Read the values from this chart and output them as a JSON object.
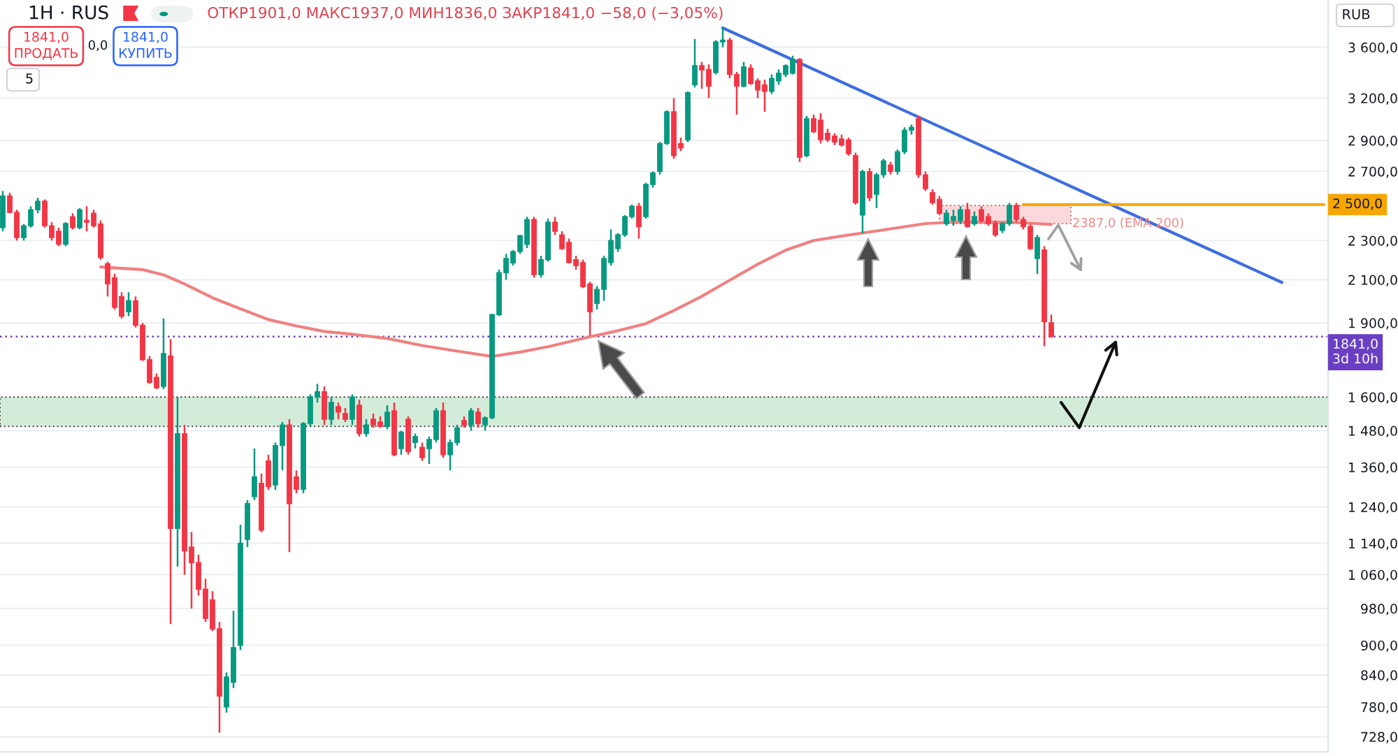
{
  "chart_data": {
    "type": "candlestick",
    "title": "1H · RUS",
    "subtitle": "ОТКР1901,0 МАКС1937,0 МИН1836,0 ЗАКР1841,0 −58,0 (−3,05%)",
    "categories": [
      null,
      null,
      null,
      null,
      null,
      null,
      null,
      null,
      null,
      null,
      null,
      null,
      null,
      null,
      null,
      null,
      null,
      null,
      null,
      null,
      null,
      null,
      null,
      null,
      null,
      null,
      null,
      null,
      null,
      null,
      null,
      null,
      null,
      null,
      null,
      null,
      null,
      null,
      null,
      null,
      null,
      null,
      null,
      null,
      null,
      null,
      null,
      null,
      null,
      null,
      null,
      null,
      null,
      null,
      null,
      null,
      null,
      null,
      null,
      null,
      null,
      null,
      null,
      null,
      null,
      null,
      null,
      null,
      null,
      null,
      null,
      null,
      null,
      null,
      null,
      null,
      null,
      null,
      null,
      null,
      null,
      null,
      null,
      null,
      null,
      null,
      null,
      null,
      null,
      null,
      null,
      null,
      null,
      null,
      null,
      null,
      null,
      null,
      null,
      null,
      null,
      null,
      null,
      null,
      null,
      null,
      null,
      null,
      null,
      null,
      null,
      null,
      null,
      null,
      null,
      null,
      null,
      null,
      null,
      null,
      null,
      null,
      null,
      null,
      null,
      null,
      null,
      null,
      null,
      null,
      null,
      null,
      null,
      null,
      null,
      null,
      null,
      null,
      null,
      null,
      null,
      null,
      null,
      null,
      null,
      null,
      null,
      null,
      null,
      null,
      null,
      null,
      null,
      null,
      null,
      null,
      null,
      null,
      null,
      null,
      null,
      null,
      null,
      null,
      null,
      null,
      null,
      null,
      null,
      null,
      null,
      null,
      null,
      null,
      null,
      null,
      null,
      null,
      null,
      null,
      null,
      null,
      null,
      null,
      null,
      null,
      null,
      null,
      null,
      null
    ],
    "ohlc": [
      [
        2370,
        2580,
        2350,
        2550
      ],
      [
        2550,
        2570,
        2450,
        2455
      ],
      [
        2455,
        2470,
        2300,
        2316
      ],
      [
        2316,
        2390,
        2300,
        2380
      ],
      [
        2380,
        2490,
        2370,
        2470
      ],
      [
        2470,
        2540,
        2450,
        2520
      ],
      [
        2520,
        2530,
        2370,
        2380
      ],
      [
        2380,
        2400,
        2300,
        2316
      ],
      [
        2350,
        2370,
        2270,
        2280
      ],
      [
        2280,
        2400,
        2270,
        2392
      ],
      [
        2430,
        2450,
        2360,
        2370
      ],
      [
        2370,
        2480,
        2360,
        2470
      ],
      [
        2410,
        2490,
        2350,
        2400
      ],
      [
        2450,
        2470,
        2370,
        2380
      ],
      [
        2390,
        2410,
        2200,
        2210
      ],
      [
        2180,
        2190,
        2020,
        2080
      ],
      [
        2110,
        2130,
        1960,
        1970
      ],
      [
        2020,
        2040,
        1920,
        1930
      ],
      [
        1950,
        2040,
        1930,
        2000
      ],
      [
        2000,
        2020,
        1880,
        1890
      ],
      [
        1890,
        1900,
        1740,
        1745
      ],
      [
        1745,
        1760,
        1650,
        1655
      ],
      [
        1675,
        1690,
        1630,
        1635
      ],
      [
        1640,
        1920,
        1630,
        1770
      ],
      [
        1760,
        1830,
        945,
        1180
      ],
      [
        1180,
        1600,
        1080,
        1470
      ],
      [
        1470,
        1500,
        1060,
        1120
      ],
      [
        1130,
        1170,
        980,
        1090
      ],
      [
        1090,
        1110,
        1010,
        1025
      ],
      [
        1025,
        1050,
        950,
        958
      ],
      [
        1000,
        1020,
        930,
        935
      ],
      [
        935,
        950,
        735,
        800
      ],
      [
        780,
        845,
        770,
        836
      ],
      [
        826,
        975,
        815,
        895
      ],
      [
        900,
        1190,
        890,
        1140
      ],
      [
        1150,
        1260,
        1130,
        1250
      ],
      [
        1270,
        1420,
        1260,
        1330
      ],
      [
        1310,
        1340,
        1170,
        1175
      ],
      [
        1380,
        1400,
        1290,
        1300
      ],
      [
        1305,
        1440,
        1290,
        1430
      ],
      [
        1430,
        1510,
        1350,
        1500
      ],
      [
        1500,
        1520,
        1117,
        1250
      ],
      [
        1330,
        1350,
        1280,
        1292
      ],
      [
        1292,
        1510,
        1280,
        1505
      ],
      [
        1505,
        1610,
        1495,
        1600
      ],
      [
        1600,
        1650,
        1580,
        1620
      ],
      [
        1620,
        1640,
        1500,
        1520
      ],
      [
        1520,
        1600,
        1500,
        1580
      ],
      [
        1565,
        1580,
        1520,
        1545
      ],
      [
        1540,
        1560,
        1510,
        1520
      ],
      [
        1520,
        1610,
        1500,
        1600
      ],
      [
        1570,
        1590,
        1460,
        1470
      ],
      [
        1470,
        1520,
        1460,
        1500
      ],
      [
        1520,
        1540,
        1490,
        1500
      ],
      [
        1510,
        1530,
        1490,
        1495
      ],
      [
        1495,
        1570,
        1485,
        1545
      ],
      [
        1550,
        1580,
        1395,
        1400
      ],
      [
        1420,
        1480,
        1400,
        1475
      ],
      [
        1520,
        1530,
        1400,
        1410
      ],
      [
        1440,
        1470,
        1420,
        1460
      ],
      [
        1424,
        1440,
        1380,
        1390
      ],
      [
        1420,
        1460,
        1370,
        1450
      ],
      [
        1450,
        1560,
        1440,
        1550
      ],
      [
        1550,
        1580,
        1390,
        1400
      ],
      [
        1400,
        1450,
        1350,
        1440
      ],
      [
        1440,
        1500,
        1430,
        1490
      ],
      [
        1515,
        1530,
        1490,
        1500
      ],
      [
        1500,
        1560,
        1480,
        1550
      ],
      [
        1545,
        1560,
        1490,
        1505
      ],
      [
        1500,
        1530,
        1480,
        1525
      ],
      [
        1525,
        1940,
        1520,
        1937
      ],
      [
        1937,
        2150,
        1930,
        2135
      ],
      [
        2135,
        2230,
        2100,
        2206
      ],
      [
        2184,
        2250,
        2170,
        2242
      ],
      [
        2242,
        2330,
        2230,
        2326
      ],
      [
        2279,
        2430,
        2260,
        2415
      ],
      [
        2415,
        2430,
        2110,
        2125
      ],
      [
        2125,
        2220,
        2110,
        2200
      ],
      [
        2200,
        2420,
        2190,
        2400
      ],
      [
        2400,
        2430,
        2330,
        2350
      ],
      [
        2330,
        2350,
        2250,
        2257
      ],
      [
        2290,
        2310,
        2180,
        2185
      ],
      [
        2200,
        2220,
        2150,
        2170
      ],
      [
        2185,
        2200,
        2060,
        2067
      ],
      [
        2080,
        2090,
        1845,
        1950
      ],
      [
        1988,
        2070,
        1960,
        2054
      ],
      [
        2054,
        2220,
        2000,
        2206
      ],
      [
        2185,
        2360,
        2170,
        2300
      ],
      [
        2257,
        2340,
        2240,
        2331
      ],
      [
        2331,
        2440,
        2320,
        2431
      ],
      [
        2431,
        2500,
        2420,
        2490
      ],
      [
        2490,
        2510,
        2310,
        2376
      ],
      [
        2431,
        2630,
        2420,
        2619
      ],
      [
        2619,
        2700,
        2600,
        2690
      ],
      [
        2700,
        2890,
        2680,
        2880
      ],
      [
        2880,
        3110,
        2870,
        3100
      ],
      [
        3100,
        3200,
        2780,
        2800
      ],
      [
        2880,
        2920,
        2830,
        2850
      ],
      [
        2905,
        3250,
        2890,
        3240
      ],
      [
        3300,
        3670,
        3280,
        3450
      ],
      [
        3450,
        3480,
        3270,
        3416
      ],
      [
        3420,
        3460,
        3200,
        3290
      ],
      [
        3395,
        3660,
        3380,
        3645
      ],
      [
        3645,
        3765,
        3600,
        3660
      ],
      [
        3660,
        3680,
        3350,
        3380
      ],
      [
        3380,
        3400,
        3080,
        3290
      ],
      [
        3290,
        3480,
        3280,
        3440
      ],
      [
        3430,
        3460,
        3300,
        3310
      ],
      [
        3330,
        3350,
        3200,
        3260
      ],
      [
        3300,
        3340,
        3100,
        3250
      ],
      [
        3250,
        3380,
        3230,
        3350
      ],
      [
        3330,
        3420,
        3300,
        3390
      ],
      [
        3380,
        3460,
        3360,
        3450
      ],
      [
        3390,
        3530,
        3380,
        3500
      ],
      [
        3500,
        3510,
        2760,
        2790
      ],
      [
        2800,
        3070,
        2790,
        3050
      ],
      [
        3050,
        3080,
        2950,
        2960
      ],
      [
        3040,
        3090,
        2880,
        2905
      ],
      [
        2950,
        2980,
        2890,
        2905
      ],
      [
        2930,
        2950,
        2870,
        2890
      ],
      [
        2910,
        2940,
        2860,
        2870
      ],
      [
        2905,
        2920,
        2800,
        2812
      ],
      [
        2800,
        2820,
        2500,
        2511
      ],
      [
        2440,
        2710,
        2339,
        2698
      ],
      [
        2698,
        2720,
        2520,
        2540
      ],
      [
        2560,
        2690,
        2480,
        2679
      ],
      [
        2679,
        2780,
        2660,
        2767
      ],
      [
        2740,
        2760,
        2680,
        2700
      ],
      [
        2700,
        2840,
        2680,
        2826
      ],
      [
        2826,
        2990,
        2810,
        2970
      ],
      [
        2970,
        3010,
        2940,
        2990
      ],
      [
        3050,
        3070,
        2660,
        2679
      ],
      [
        2679,
        2700,
        2580,
        2594
      ],
      [
        2570,
        2590,
        2500,
        2511
      ],
      [
        2530,
        2550,
        2440,
        2450
      ],
      [
        2392,
        2470,
        2380,
        2450
      ],
      [
        2410,
        2470,
        2380,
        2431
      ],
      [
        2410,
        2490,
        2390,
        2470
      ],
      [
        2470,
        2510,
        2370,
        2376
      ],
      [
        2392,
        2460,
        2380,
        2431
      ],
      [
        2470,
        2490,
        2400,
        2408
      ],
      [
        2431,
        2450,
        2380,
        2392
      ],
      [
        2392,
        2410,
        2320,
        2331
      ],
      [
        2354,
        2400,
        2340,
        2392
      ],
      [
        2392,
        2510,
        2380,
        2495
      ],
      [
        2495,
        2510,
        2400,
        2415
      ],
      [
        2415,
        2430,
        2360,
        2376
      ],
      [
        2376,
        2390,
        2250,
        2257
      ],
      [
        2206,
        2330,
        2128,
        2316
      ],
      [
        2250,
        2270,
        1800,
        1906
      ],
      [
        1901,
        1937,
        1836,
        1841
      ],
      null,
      null,
      null,
      null,
      null,
      null,
      null,
      null,
      null,
      null,
      null,
      null,
      null,
      null,
      null,
      null,
      null,
      null,
      null,
      null,
      null,
      null,
      null,
      null,
      null,
      null,
      null,
      null,
      null,
      null,
      null,
      null,
      null,
      null,
      null,
      null,
      null,
      null,
      null
    ],
    "series": [
      {
        "type": "line",
        "color": "#f08080",
        "values": [
          null,
          null,
          null,
          null,
          null,
          null,
          null,
          null,
          null,
          null,
          null,
          null,
          null,
          null,
          2163,
          null,
          null,
          null,
          null,
          null,
          2150,
          null,
          null,
          2124,
          null,
          null,
          2080,
          null,
          null,
          null,
          2014,
          null,
          null,
          null,
          1963,
          null,
          null,
          null,
          1915,
          null,
          null,
          null,
          1887,
          null,
          null,
          null,
          1863,
          null,
          null,
          null,
          1851,
          null,
          null,
          null,
          null,
          1833,
          null,
          null,
          null,
          null,
          1803,
          null,
          null,
          null,
          null,
          1780,
          null,
          null,
          null,
          null,
          1758,
          null,
          null,
          null,
          1776,
          null,
          null,
          null,
          1798,
          null,
          null,
          null,
          null,
          null,
          1840,
          null,
          null,
          null,
          1866,
          null,
          null,
          null,
          1897,
          null,
          null,
          null,
          1956,
          null,
          null,
          null,
          2021,
          null,
          null,
          null,
          2098,
          null,
          null,
          null,
          2177,
          null,
          null,
          null,
          2249,
          null,
          null,
          null,
          2300,
          null,
          null,
          null,
          2324,
          null,
          null,
          null,
          2346,
          null,
          null,
          null,
          2369,
          null,
          null,
          null,
          2392,
          null,
          null,
          null,
          2400,
          null,
          null,
          null,
          2400,
          null,
          null,
          null,
          2400,
          null,
          null,
          null,
          2392,
          null,
          2387,
          null,
          null,
          null,
          null,
          null,
          null,
          null,
          null,
          null,
          null,
          null,
          null,
          null,
          null,
          null,
          null,
          null,
          null,
          null,
          null,
          null,
          null,
          null,
          null,
          null,
          null,
          null,
          null,
          null,
          null,
          null,
          null,
          null,
          null,
          null,
          null,
          null,
          null,
          null
        ]
      },
      {
        "type": "line",
        "color": "#3d6ee0",
        "values": [
          null,
          null,
          null,
          null,
          null,
          null,
          null,
          null,
          null,
          null,
          null,
          null,
          null,
          null,
          null,
          null,
          null,
          null,
          null,
          null,
          null,
          null,
          null,
          null,
          null,
          null,
          null,
          null,
          null,
          null,
          null,
          null,
          null,
          null,
          null,
          null,
          null,
          null,
          null,
          null,
          null,
          null,
          null,
          null,
          null,
          null,
          null,
          null,
          null,
          null,
          null,
          null,
          null,
          null,
          null,
          null,
          null,
          null,
          null,
          null,
          null,
          null,
          null,
          null,
          null,
          null,
          null,
          null,
          null,
          null,
          null,
          null,
          null,
          null,
          null,
          null,
          null,
          null,
          null,
          null,
          null,
          null,
          null,
          null,
          null,
          null,
          null,
          null,
          null,
          null,
          null,
          null,
          null,
          null,
          null,
          null,
          null,
          null,
          null,
          null,
          null,
          null,
          null,
          3765,
          null,
          null,
          null,
          null,
          null,
          null,
          null,
          null,
          null,
          null,
          null,
          null,
          null,
          null,
          null,
          null,
          null,
          null,
          null,
          null,
          null,
          null,
          null,
          null,
          null,
          null,
          null,
          null,
          null,
          null,
          null,
          null,
          null,
          null,
          null,
          null,
          null,
          null,
          null,
          null,
          null,
          null,
          null,
          null,
          null,
          null,
          null,
          null,
          null,
          null,
          null,
          null,
          null,
          null,
          null,
          null,
          null,
          null,
          null,
          null,
          null,
          null,
          null,
          null,
          null,
          null,
          null,
          null,
          null,
          null,
          null,
          null,
          null,
          null,
          null,
          null,
          null,
          null,
          null,
          2087,
          null,
          null,
          null,
          null,
          null,
          null
        ]
      },
      {
        "type": "line",
        "color": "#f7a600",
        "values": [
          null,
          null,
          null,
          null,
          null,
          null,
          null,
          null,
          null,
          null,
          null,
          null,
          null,
          null,
          null,
          null,
          null,
          null,
          null,
          null,
          null,
          null,
          null,
          null,
          null,
          null,
          null,
          null,
          null,
          null,
          null,
          null,
          null,
          null,
          null,
          null,
          null,
          null,
          null,
          null,
          null,
          null,
          null,
          null,
          null,
          null,
          null,
          null,
          null,
          null,
          null,
          null,
          null,
          null,
          null,
          null,
          null,
          null,
          null,
          null,
          null,
          null,
          null,
          null,
          null,
          null,
          null,
          null,
          null,
          null,
          null,
          null,
          null,
          null,
          null,
          null,
          null,
          null,
          null,
          null,
          null,
          null,
          null,
          null,
          null,
          null,
          null,
          null,
          null,
          null,
          null,
          null,
          null,
          null,
          null,
          null,
          null,
          null,
          null,
          null,
          null,
          null,
          null,
          null,
          null,
          null,
          null,
          null,
          null,
          null,
          null,
          null,
          null,
          null,
          null,
          null,
          null,
          null,
          null,
          null,
          null,
          null,
          null,
          null,
          null,
          null,
          null,
          null,
          null,
          null,
          null,
          null,
          null,
          null,
          null,
          null,
          null,
          null,
          null,
          null,
          null,
          null,
          null,
          null,
          null,
          null,
          2500,
          null,
          null,
          null,
          null,
          null,
          null,
          null,
          null,
          null,
          null,
          null,
          null,
          null,
          null,
          null,
          null,
          null,
          null,
          null,
          null,
          null,
          null,
          null,
          null,
          null,
          null,
          null,
          null,
          null,
          null,
          null,
          null,
          null,
          null,
          null,
          null,
          null,
          null,
          null,
          null,
          null,
          null,
          2500
        ]
      }
    ],
    "ylim": [
      703,
      4017
    ],
    "log": true,
    "yticks": [
      {
        "value": 3600,
        "label": "3 600,0"
      },
      {
        "value": 3200,
        "label": "3 200,0"
      },
      {
        "value": 2900,
        "label": "2 900,0"
      },
      {
        "value": 2700,
        "label": "2 700,0"
      },
      {
        "value": 2300,
        "label": "2 300,0"
      },
      {
        "value": 2100,
        "label": "2 100,0"
      },
      {
        "value": 1900,
        "label": "1 900,0"
      },
      {
        "value": 1600,
        "label": "1 600,0"
      },
      {
        "value": 1480,
        "label": "1 480,0"
      },
      {
        "value": 1360,
        "label": "1 360,0"
      },
      {
        "value": 1240,
        "label": "1 240,0"
      },
      {
        "value": 1140,
        "label": "1 140,0"
      },
      {
        "value": 1060,
        "label": "1 060,0"
      },
      {
        "value": 980,
        "label": "980,0"
      },
      {
        "value": 900,
        "label": "900,0"
      },
      {
        "value": 840,
        "label": "840,0"
      },
      {
        "value": 780,
        "label": "780,0"
      },
      {
        "value": 728,
        "label": "728,0"
      }
    ],
    "grid": "y",
    "tick_labels": "y",
    "ref_lines": [
      {
        "axis": "y",
        "value": 1841,
        "label": "1841,0\n3d 10h",
        "color": "#6a3fc4",
        "line_style": "dotted"
      }
    ],
    "bands": [
      {
        "axis": "y",
        "from": 1495,
        "to": 1600,
        "color": "#d3ecd9"
      }
    ],
    "annotations": [
      "1841,0\nПРОДАТЬ",
      "0,0",
      "1841,0\nКУПИТЬ",
      "5",
      "RUB",
      {
        "text": "2 500,0",
        "y": 2500
      },
      "2387,0 (EMA 200)"
    ]
  }
}
